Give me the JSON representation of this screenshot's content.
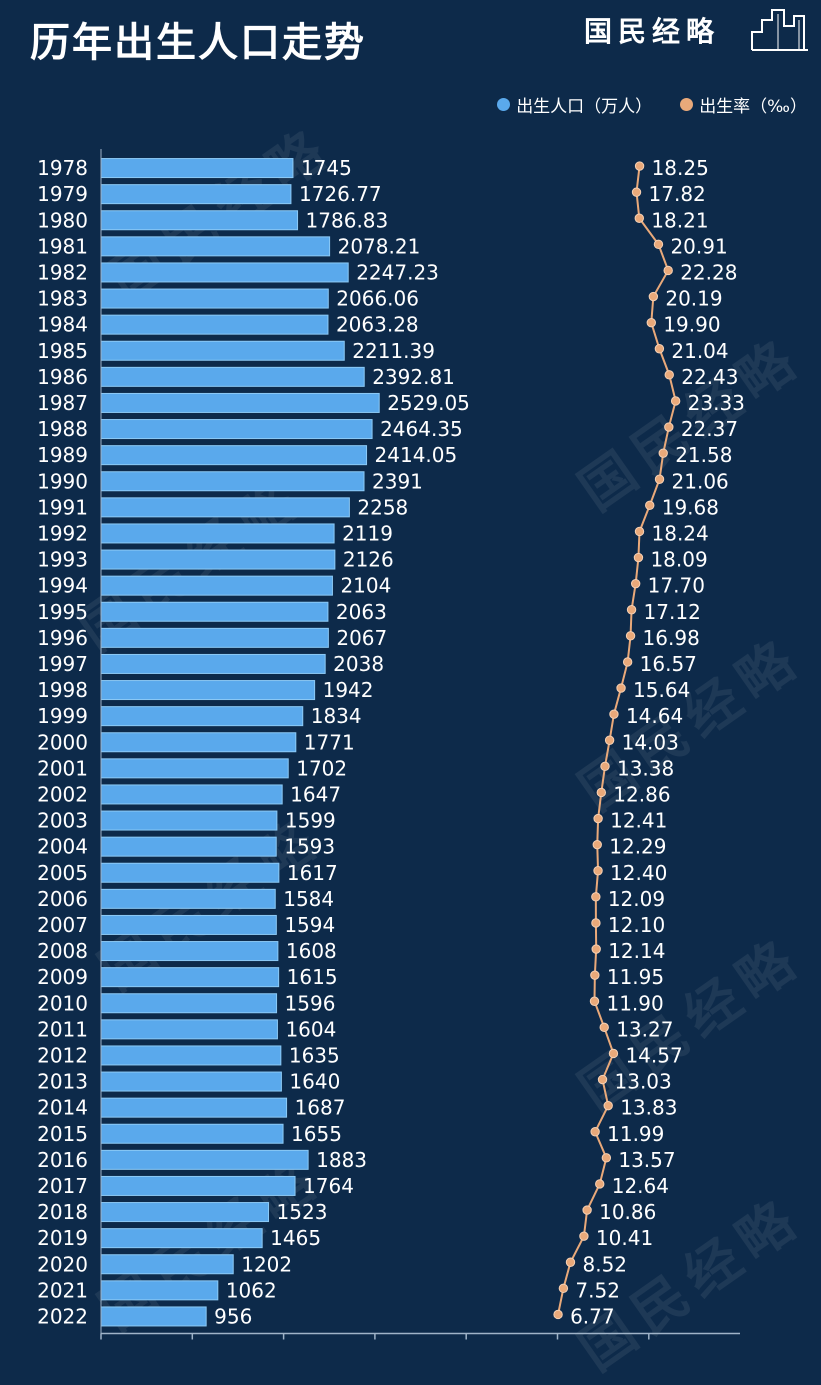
{
  "title": "历年出生人口走势",
  "brand": "国民经略",
  "legend": {
    "population": "出生人口（万人）",
    "rate": "出生率（‰）"
  },
  "colors": {
    "background": "#0d2a4a",
    "bar": "#5aa9ec",
    "bar_edge": "#8ccaf6",
    "line": "#e9a97a",
    "text": "#ffffff"
  },
  "chart_data": {
    "type": "bar",
    "orientation": "horizontal",
    "categories": [
      "1978",
      "1979",
      "1980",
      "1981",
      "1982",
      "1983",
      "1984",
      "1985",
      "1986",
      "1987",
      "1988",
      "1989",
      "1990",
      "1991",
      "1992",
      "1993",
      "1994",
      "1995",
      "1996",
      "1997",
      "1998",
      "1999",
      "2000",
      "2001",
      "2002",
      "2003",
      "2004",
      "2005",
      "2006",
      "2007",
      "2008",
      "2009",
      "2010",
      "2011",
      "2012",
      "2013",
      "2014",
      "2015",
      "2016",
      "2017",
      "2018",
      "2019",
      "2020",
      "2021",
      "2022"
    ],
    "series": [
      {
        "name": "出生人口（万人）",
        "type": "bar",
        "values": [
          1745,
          1726.77,
          1786.83,
          2078.21,
          2247.23,
          2066.06,
          2063.28,
          2211.39,
          2392.81,
          2529.05,
          2464.35,
          2414.05,
          2391,
          2258,
          2119,
          2126,
          2104,
          2063,
          2067,
          2038,
          1942,
          1834,
          1771,
          1702,
          1647,
          1599,
          1593,
          1617,
          1584,
          1594,
          1608,
          1615,
          1596,
          1604,
          1635,
          1640,
          1687,
          1655,
          1883,
          1764,
          1523,
          1465,
          1202,
          1062,
          956
        ],
        "labels": [
          "1745",
          "1726.77",
          "1786.83",
          "2078.21",
          "2247.23",
          "2066.06",
          "2063.28",
          "2211.39",
          "2392.81",
          "2529.05",
          "2464.35",
          "2414.05",
          "2391",
          "2258",
          "2119",
          "2126",
          "2104",
          "2063",
          "2067",
          "2038",
          "1942",
          "1834",
          "1771",
          "1702",
          "1647",
          "1599",
          "1593",
          "1617",
          "1584",
          "1594",
          "1608",
          "1615",
          "1596",
          "1604",
          "1635",
          "1640",
          "1687",
          "1655",
          "1883",
          "1764",
          "1523",
          "1465",
          "1202",
          "1062",
          "956"
        ]
      },
      {
        "name": "出生率（‰）",
        "type": "line",
        "values": [
          18.25,
          17.82,
          18.21,
          20.91,
          22.28,
          20.19,
          19.9,
          21.04,
          22.43,
          23.33,
          22.37,
          21.58,
          21.06,
          19.68,
          18.24,
          18.09,
          17.7,
          17.12,
          16.98,
          16.57,
          15.64,
          14.64,
          14.03,
          13.38,
          12.86,
          12.41,
          12.29,
          12.4,
          12.09,
          12.1,
          12.14,
          11.95,
          11.9,
          13.27,
          14.57,
          13.03,
          13.83,
          11.99,
          13.57,
          12.64,
          10.86,
          10.41,
          8.52,
          7.52,
          6.77
        ],
        "labels": [
          "18.25",
          "17.82",
          "18.21",
          "20.91",
          "22.28",
          "20.19",
          "19.90",
          "21.04",
          "22.43",
          "23.33",
          "22.37",
          "21.58",
          "21.06",
          "19.68",
          "18.24",
          "18.09",
          "17.70",
          "17.12",
          "16.98",
          "16.57",
          "15.64",
          "14.64",
          "14.03",
          "13.38",
          "12.86",
          "12.41",
          "12.29",
          "12.40",
          "12.09",
          "12.10",
          "12.14",
          "11.95",
          "11.90",
          "13.27",
          "14.57",
          "13.03",
          "13.83",
          "11.99",
          "13.57",
          "12.64",
          "10.86",
          "10.41",
          "8.52",
          "7.52",
          "6.77"
        ]
      }
    ],
    "xlim": [
      0,
      3500
    ],
    "grid": false,
    "legend_position": "top-right"
  }
}
